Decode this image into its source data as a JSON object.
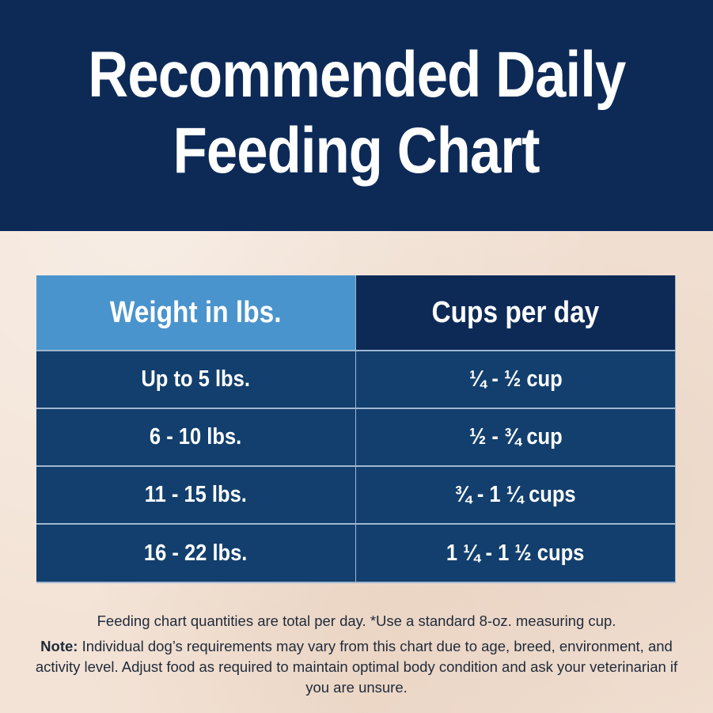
{
  "header": {
    "title_line1": "Recommended Daily",
    "title_line2": "Feeding Chart"
  },
  "table": {
    "columns": [
      "Weight in lbs.",
      "Cups per day"
    ],
    "rows": [
      {
        "weight": "Up to 5 lbs.",
        "cups": "¼ - ½ cup"
      },
      {
        "weight": "6 - 10 lbs.",
        "cups": "½ - ¾ cup"
      },
      {
        "weight": "11 - 15 lbs.",
        "cups": "¾ - 1 ¼ cups"
      },
      {
        "weight": "16 - 22 lbs.",
        "cups": "1 ¼ - 1 ½ cups"
      }
    ]
  },
  "notes": {
    "line1": "Feeding chart quantities are total per day. *Use a standard 8-oz. measuring cup.",
    "note_label": "Note:",
    "note_text": "Individual dog’s requirements may vary from this chart due to age, breed, environment, and activity level. Adjust food as required to maintain optimal body condition and ask your veterinarian if you are unsure."
  },
  "colors": {
    "header_bg": "#0d2a57",
    "table_head_left": "#4a94cd",
    "table_body": "#123f6d",
    "page_bg": "#f3e3d6"
  }
}
